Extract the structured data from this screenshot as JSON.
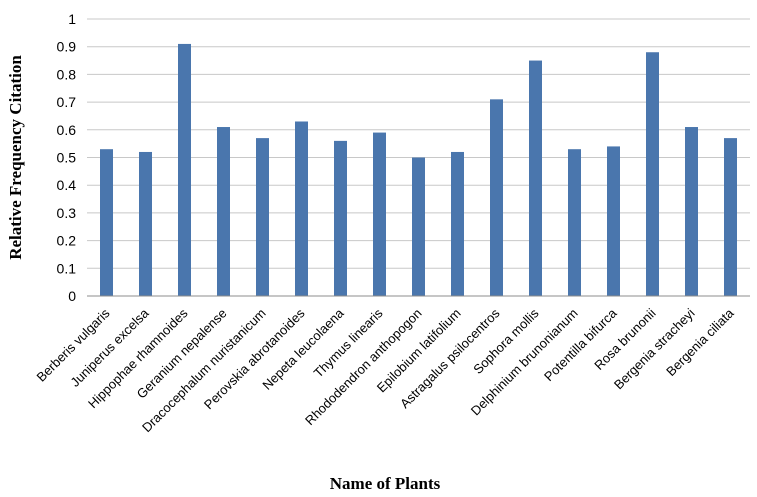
{
  "chart_data": {
    "type": "bar",
    "title": "",
    "xlabel": "Name of Plants",
    "ylabel": "Relative Frequency Citation",
    "ylim": [
      0,
      1
    ],
    "yticks": [
      "0",
      "0.1",
      "0.2",
      "0.3",
      "0.4",
      "0.5",
      "0.6",
      "0.7",
      "0.8",
      "0.9",
      "1"
    ],
    "grid": true,
    "legend": "none",
    "bar_color": "#4a76ad",
    "categories": [
      "Berberis vulgaris",
      "Juniperus excelsa",
      "Hippophae rhamnoides",
      "Geranium nepalense",
      "Dracocephalum nuristanicum",
      "Perovskia abrotanoides",
      "Nepeta leucolaena",
      "Thymus linearis",
      "Rhododendron anthopogon",
      "Epilobium latifolium",
      "Astragalus psilocentros",
      "Sophora mollis",
      "Delphinium brunonianum",
      "Potentilla bifurca",
      "Rosa brunonii",
      "Bergenia stracheyi",
      "Bergenia ciliata"
    ],
    "values": [
      0.53,
      0.52,
      0.91,
      0.61,
      0.57,
      0.63,
      0.56,
      0.59,
      0.5,
      0.52,
      0.71,
      0.85,
      0.53,
      0.54,
      0.88,
      0.61,
      0.57
    ]
  }
}
